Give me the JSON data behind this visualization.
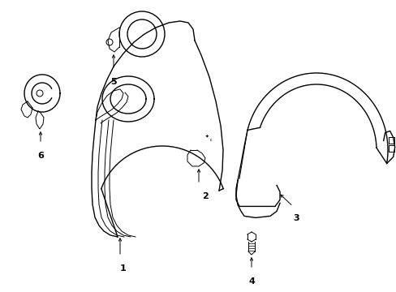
{
  "bg_color": "#ffffff",
  "line_color": "#000000",
  "lw": 1.0,
  "tlw": 0.7,
  "fig_width": 4.89,
  "fig_height": 3.6,
  "dpi": 100
}
